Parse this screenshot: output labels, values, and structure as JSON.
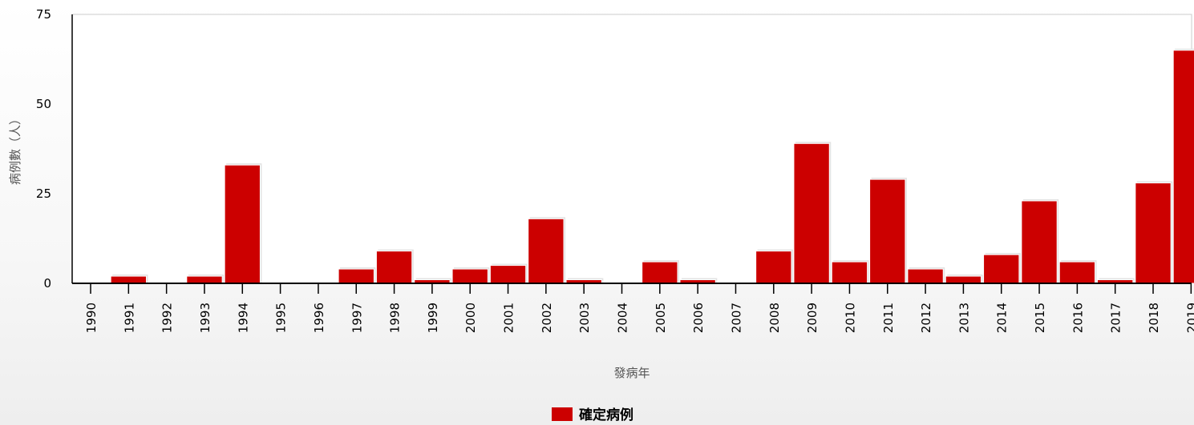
{
  "chart_data": {
    "type": "bar",
    "categories": [
      "1990",
      "1991",
      "1992",
      "1993",
      "1994",
      "1995",
      "1996",
      "1997",
      "1998",
      "1999",
      "2000",
      "2001",
      "2002",
      "2003",
      "2004",
      "2005",
      "2006",
      "2007",
      "2008",
      "2009",
      "2010",
      "2011",
      "2012",
      "2013",
      "2014",
      "2015",
      "2016",
      "2017",
      "2018",
      "2019"
    ],
    "series": [
      {
        "name": "確定病例",
        "color": "#cc0000",
        "values": [
          0,
          2,
          0,
          2,
          33,
          0,
          0,
          4,
          9,
          1,
          4,
          5,
          18,
          1,
          0,
          6,
          1,
          0,
          9,
          39,
          6,
          29,
          4,
          2,
          8,
          23,
          6,
          1,
          28,
          65
        ]
      }
    ],
    "xlabel": "發病年",
    "ylabel": "病例數（人）",
    "ylim": [
      0,
      75
    ],
    "yticks": [
      0,
      25,
      50,
      75
    ],
    "grid": false,
    "legend_position": "bottom-center"
  }
}
